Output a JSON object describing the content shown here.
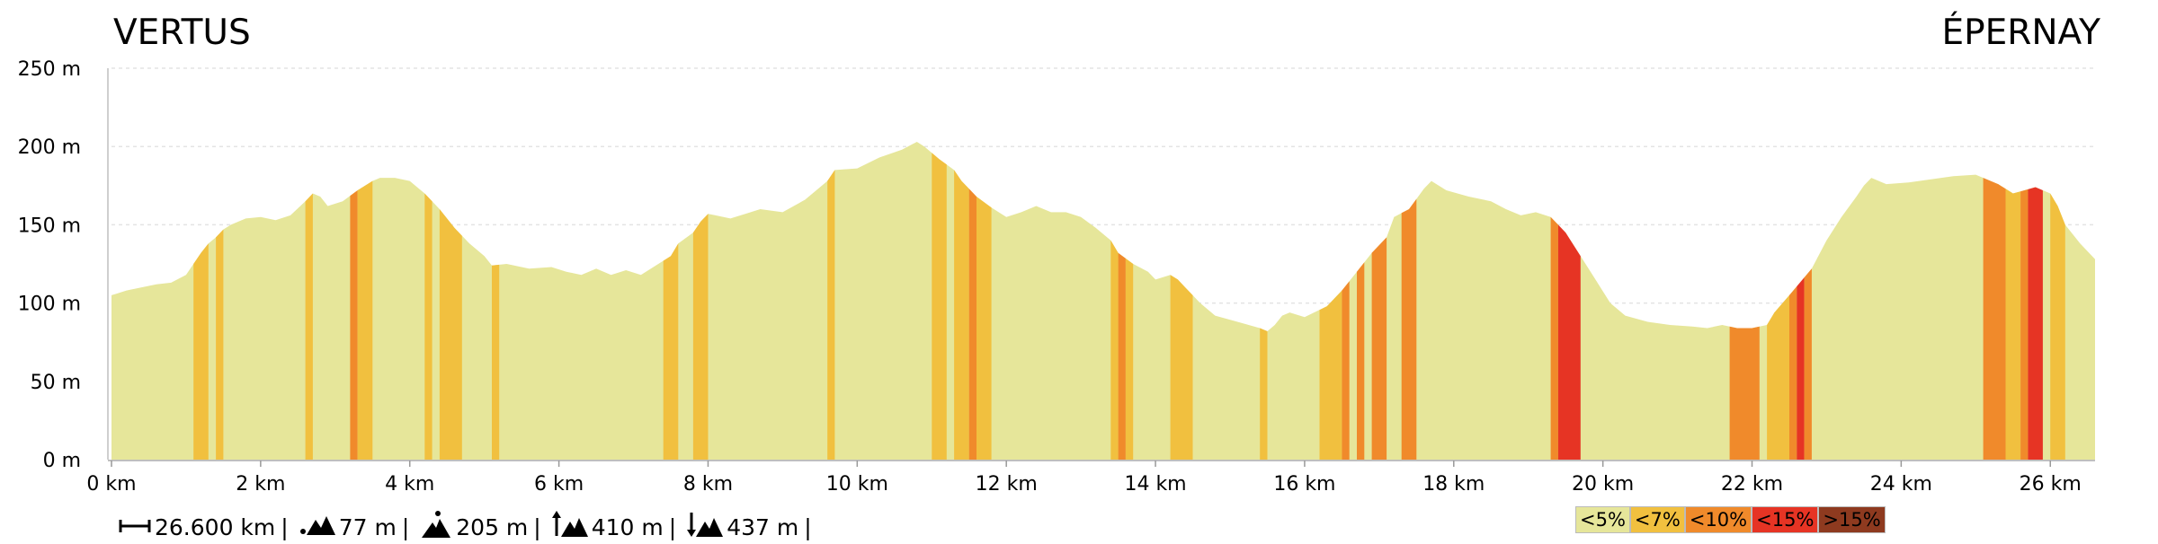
{
  "start_place": "VERTUS",
  "end_place": "ÉPERNAY",
  "chart_data": {
    "type": "area",
    "title": "",
    "xlabel": "",
    "ylabel": "",
    "x_unit": "km",
    "y_unit": "m",
    "xlim": [
      0,
      26.6
    ],
    "ylim": [
      0,
      250
    ],
    "x_ticks": [
      "0 km",
      "2 km",
      "4 km",
      "6 km",
      "8 km",
      "10 km",
      "12 km",
      "14 km",
      "16 km",
      "18 km",
      "20 km",
      "22 km",
      "24 km",
      "26 km"
    ],
    "y_ticks": [
      "0 m",
      "50 m",
      "100 m",
      "150 m",
      "200 m",
      "250 m"
    ],
    "grid": true,
    "profile": [
      [
        0.0,
        105
      ],
      [
        0.2,
        108
      ],
      [
        0.6,
        112
      ],
      [
        0.8,
        113
      ],
      [
        1.0,
        118
      ],
      [
        1.1,
        125
      ],
      [
        1.2,
        132
      ],
      [
        1.3,
        138
      ],
      [
        1.4,
        142
      ],
      [
        1.5,
        147
      ],
      [
        1.6,
        150
      ],
      [
        1.8,
        154
      ],
      [
        2.0,
        155
      ],
      [
        2.2,
        153
      ],
      [
        2.4,
        156
      ],
      [
        2.6,
        165
      ],
      [
        2.7,
        170
      ],
      [
        2.8,
        168
      ],
      [
        2.9,
        162
      ],
      [
        3.1,
        165
      ],
      [
        3.3,
        172
      ],
      [
        3.5,
        178
      ],
      [
        3.6,
        180
      ],
      [
        3.8,
        180
      ],
      [
        4.0,
        178
      ],
      [
        4.2,
        170
      ],
      [
        4.4,
        160
      ],
      [
        4.6,
        148
      ],
      [
        4.8,
        138
      ],
      [
        5.0,
        130
      ],
      [
        5.1,
        124
      ],
      [
        5.3,
        125
      ],
      [
        5.6,
        122
      ],
      [
        5.9,
        123
      ],
      [
        6.1,
        120
      ],
      [
        6.3,
        118
      ],
      [
        6.5,
        122
      ],
      [
        6.7,
        118
      ],
      [
        6.9,
        121
      ],
      [
        7.1,
        118
      ],
      [
        7.3,
        124
      ],
      [
        7.5,
        130
      ],
      [
        7.6,
        138
      ],
      [
        7.8,
        145
      ],
      [
        7.9,
        152
      ],
      [
        8.0,
        157
      ],
      [
        8.1,
        156
      ],
      [
        8.3,
        154
      ],
      [
        8.5,
        157
      ],
      [
        8.7,
        160
      ],
      [
        9.0,
        158
      ],
      [
        9.3,
        166
      ],
      [
        9.6,
        178
      ],
      [
        9.7,
        185
      ],
      [
        10.0,
        186
      ],
      [
        10.3,
        193
      ],
      [
        10.6,
        198
      ],
      [
        10.8,
        203
      ],
      [
        10.9,
        200
      ],
      [
        11.1,
        192
      ],
      [
        11.3,
        185
      ],
      [
        11.4,
        178
      ],
      [
        11.6,
        168
      ],
      [
        11.8,
        161
      ],
      [
        12.0,
        155
      ],
      [
        12.2,
        158
      ],
      [
        12.4,
        162
      ],
      [
        12.6,
        158
      ],
      [
        12.8,
        158
      ],
      [
        13.0,
        155
      ],
      [
        13.2,
        148
      ],
      [
        13.4,
        140
      ],
      [
        13.5,
        132
      ],
      [
        13.7,
        125
      ],
      [
        13.9,
        120
      ],
      [
        14.0,
        115
      ],
      [
        14.2,
        118
      ],
      [
        14.3,
        115
      ],
      [
        14.4,
        110
      ],
      [
        14.6,
        100
      ],
      [
        14.8,
        92
      ],
      [
        15.1,
        88
      ],
      [
        15.4,
        84
      ],
      [
        15.5,
        82
      ],
      [
        15.6,
        86
      ],
      [
        15.7,
        92
      ],
      [
        15.8,
        94
      ],
      [
        16.0,
        91
      ],
      [
        16.3,
        98
      ],
      [
        16.5,
        108
      ],
      [
        16.7,
        120
      ],
      [
        16.9,
        132
      ],
      [
        17.1,
        142
      ],
      [
        17.2,
        155
      ],
      [
        17.4,
        160
      ],
      [
        17.6,
        173
      ],
      [
        17.7,
        178
      ],
      [
        17.9,
        172
      ],
      [
        18.2,
        168
      ],
      [
        18.5,
        165
      ],
      [
        18.7,
        160
      ],
      [
        18.9,
        156
      ],
      [
        19.1,
        158
      ],
      [
        19.3,
        155
      ],
      [
        19.5,
        145
      ],
      [
        19.7,
        130
      ],
      [
        19.9,
        115
      ],
      [
        20.1,
        100
      ],
      [
        20.3,
        92
      ],
      [
        20.6,
        88
      ],
      [
        20.9,
        86
      ],
      [
        21.2,
        85
      ],
      [
        21.4,
        84
      ],
      [
        21.6,
        86
      ],
      [
        21.8,
        84
      ],
      [
        22.0,
        84
      ],
      [
        22.2,
        86
      ],
      [
        22.3,
        94
      ],
      [
        22.5,
        105
      ],
      [
        22.8,
        122
      ],
      [
        23.0,
        140
      ],
      [
        23.2,
        155
      ],
      [
        23.4,
        168
      ],
      [
        23.5,
        175
      ],
      [
        23.6,
        180
      ],
      [
        23.8,
        176
      ],
      [
        24.1,
        177
      ],
      [
        24.4,
        179
      ],
      [
        24.7,
        181
      ],
      [
        25.0,
        182
      ],
      [
        25.3,
        176
      ],
      [
        25.5,
        170
      ],
      [
        25.8,
        174
      ],
      [
        26.0,
        170
      ],
      [
        26.1,
        162
      ],
      [
        26.2,
        150
      ],
      [
        26.4,
        138
      ],
      [
        26.6,
        128
      ]
    ],
    "gradient_bands": [
      [
        1.1,
        1.3,
        "lt7"
      ],
      [
        1.4,
        1.5,
        "lt7"
      ],
      [
        2.6,
        2.7,
        "lt7"
      ],
      [
        3.2,
        3.3,
        "lt10"
      ],
      [
        3.3,
        3.5,
        "lt7"
      ],
      [
        4.2,
        4.3,
        "lt7"
      ],
      [
        4.4,
        4.7,
        "lt7"
      ],
      [
        5.1,
        5.2,
        "lt7"
      ],
      [
        7.4,
        7.6,
        "lt7"
      ],
      [
        7.8,
        8.0,
        "lt7"
      ],
      [
        9.6,
        9.7,
        "lt7"
      ],
      [
        11.0,
        11.2,
        "lt7"
      ],
      [
        11.3,
        11.5,
        "lt7"
      ],
      [
        11.5,
        11.6,
        "lt10"
      ],
      [
        11.6,
        11.8,
        "lt7"
      ],
      [
        13.4,
        13.5,
        "lt7"
      ],
      [
        13.5,
        13.6,
        "lt10"
      ],
      [
        13.6,
        13.7,
        "lt7"
      ],
      [
        14.2,
        14.5,
        "lt7"
      ],
      [
        15.4,
        15.5,
        "lt7"
      ],
      [
        16.2,
        16.5,
        "lt7"
      ],
      [
        16.5,
        16.6,
        "lt10"
      ],
      [
        16.7,
        16.8,
        "lt10"
      ],
      [
        16.9,
        17.1,
        "lt10"
      ],
      [
        17.3,
        17.5,
        "lt10"
      ],
      [
        19.3,
        19.4,
        "lt10"
      ],
      [
        19.4,
        19.7,
        "lt15"
      ],
      [
        21.7,
        22.1,
        "lt10"
      ],
      [
        22.2,
        22.5,
        "lt7"
      ],
      [
        22.5,
        22.6,
        "lt10"
      ],
      [
        22.6,
        22.7,
        "lt15"
      ],
      [
        22.7,
        22.8,
        "lt10"
      ],
      [
        25.1,
        25.4,
        "lt10"
      ],
      [
        25.4,
        25.6,
        "lt7"
      ],
      [
        25.6,
        25.7,
        "lt10"
      ],
      [
        25.7,
        25.9,
        "lt15"
      ],
      [
        26.0,
        26.2,
        "lt7"
      ]
    ]
  },
  "stats": {
    "distance": "26.600 km",
    "min_alt": "77 m",
    "max_alt": "205 m",
    "ascent": "410 m",
    "descent": "437 m",
    "sep": "|"
  },
  "legend": [
    {
      "key": "lt5",
      "label": "<5%",
      "color": "#e6e69a"
    },
    {
      "key": "lt7",
      "label": "<7%",
      "color": "#f1c03f"
    },
    {
      "key": "lt10",
      "label": "<10%",
      "color": "#f08a2b"
    },
    {
      "key": "lt15",
      "label": "<15%",
      "color": "#e63424"
    },
    {
      "key": "gt15",
      "label": ">15%",
      "color": "#8e3a1f"
    }
  ]
}
